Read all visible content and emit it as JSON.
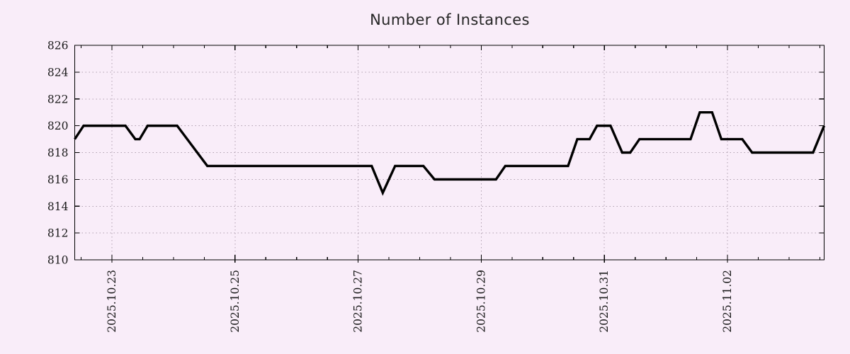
{
  "chart_data": {
    "type": "line",
    "title": "Number of Instances",
    "x_axis": {
      "unit": "days relative to 2025-10-23 00:00",
      "range": [
        -0.604,
        11.57
      ],
      "major_ticks": [
        {
          "t": 0,
          "label": "2025.10.23"
        },
        {
          "t": 2,
          "label": "2025.10.25"
        },
        {
          "t": 4,
          "label": "2025.10.27"
        },
        {
          "t": 6,
          "label": "2025.10.29"
        },
        {
          "t": 8,
          "label": "2025.10.31"
        },
        {
          "t": 10,
          "label": "2025.11.02"
        }
      ],
      "minor_tick_interval": 0.5
    },
    "y_axis": {
      "range": [
        810,
        826
      ],
      "ticks": [
        810,
        812,
        814,
        816,
        818,
        820,
        822,
        824,
        826
      ],
      "tick_step": 2
    },
    "grid": {
      "show": true,
      "style": "dotted"
    },
    "legend": {
      "show": false
    },
    "series": [
      {
        "name": "instances",
        "points": [
          [
            -0.604,
            819
          ],
          [
            -0.46,
            820
          ],
          [
            0.22,
            820
          ],
          [
            0.38,
            819
          ],
          [
            0.45,
            819
          ],
          [
            0.58,
            820
          ],
          [
            1.06,
            820
          ],
          [
            1.55,
            817
          ],
          [
            4.22,
            817
          ],
          [
            4.4,
            815
          ],
          [
            4.6,
            817
          ],
          [
            5.06,
            817
          ],
          [
            5.24,
            816
          ],
          [
            6.24,
            816
          ],
          [
            6.39,
            817
          ],
          [
            7.41,
            817
          ],
          [
            7.56,
            819
          ],
          [
            7.76,
            819
          ],
          [
            7.88,
            820
          ],
          [
            8.1,
            820
          ],
          [
            8.29,
            818
          ],
          [
            8.42,
            818
          ],
          [
            8.57,
            819
          ],
          [
            9.4,
            819
          ],
          [
            9.55,
            821
          ],
          [
            9.75,
            821
          ],
          [
            9.9,
            819
          ],
          [
            10.24,
            819
          ],
          [
            10.4,
            818
          ],
          [
            11.39,
            818
          ],
          [
            11.57,
            820
          ]
        ]
      }
    ],
    "colors": {
      "background": "#f9edf9",
      "line": "#000000",
      "grid": "#b0a0b0",
      "axis": "#000000",
      "text": "#1a1a1a",
      "title": "#262626"
    }
  }
}
